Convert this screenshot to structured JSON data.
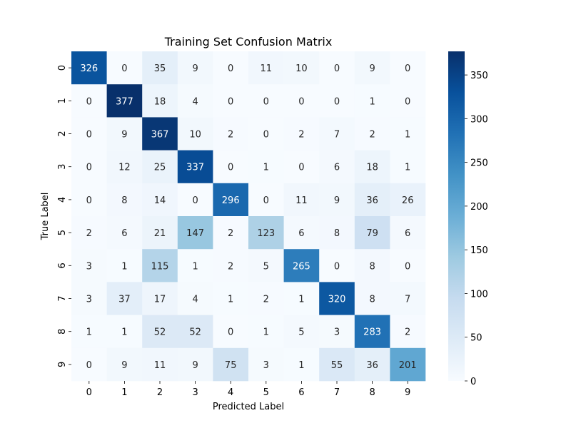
{
  "chart_data": {
    "type": "heatmap",
    "title": "Training Set Confusion Matrix",
    "xlabel": "Predicted Label",
    "ylabel": "True Label",
    "x_categories": [
      "0",
      "1",
      "2",
      "3",
      "4",
      "5",
      "6",
      "7",
      "8",
      "9"
    ],
    "y_categories": [
      "0",
      "1",
      "2",
      "3",
      "4",
      "5",
      "6",
      "7",
      "8",
      "9"
    ],
    "values": [
      [
        326,
        0,
        35,
        9,
        0,
        11,
        10,
        0,
        9,
        0
      ],
      [
        0,
        377,
        18,
        4,
        0,
        0,
        0,
        0,
        1,
        0
      ],
      [
        0,
        9,
        367,
        10,
        2,
        0,
        2,
        7,
        2,
        1
      ],
      [
        0,
        12,
        25,
        337,
        0,
        1,
        0,
        6,
        18,
        1
      ],
      [
        0,
        8,
        14,
        0,
        296,
        0,
        11,
        9,
        36,
        26
      ],
      [
        2,
        6,
        21,
        147,
        2,
        123,
        6,
        8,
        79,
        6
      ],
      [
        3,
        1,
        115,
        1,
        2,
        5,
        265,
        0,
        8,
        0
      ],
      [
        3,
        37,
        17,
        4,
        1,
        2,
        1,
        320,
        8,
        7
      ],
      [
        1,
        1,
        52,
        52,
        0,
        1,
        5,
        3,
        283,
        2
      ],
      [
        0,
        9,
        11,
        9,
        75,
        3,
        1,
        55,
        36,
        201
      ]
    ],
    "colormap": "Blues",
    "colorbar": {
      "range": [
        0,
        377
      ],
      "ticks": [
        0,
        50,
        100,
        150,
        200,
        250,
        300,
        350
      ]
    },
    "annotations": true,
    "grid": false
  }
}
